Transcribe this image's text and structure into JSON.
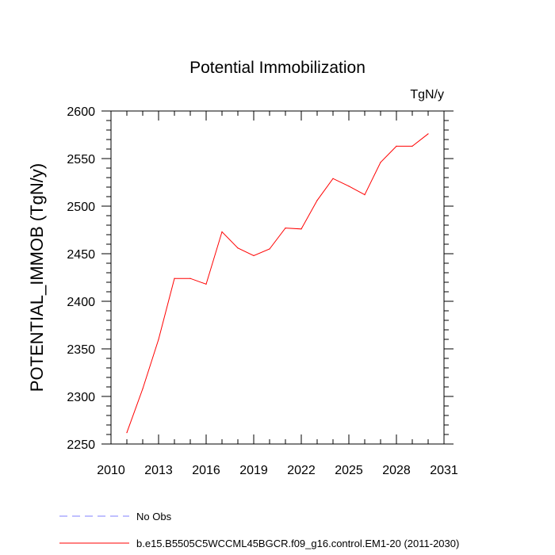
{
  "chart_data": {
    "type": "line",
    "title": "Potential Immobilization",
    "units_label": "TgN/y",
    "xlabel": "",
    "ylabel": "POTENTIAL_IMMOB  (TgN/y)",
    "xlim": [
      2010,
      2031
    ],
    "ylim": [
      2250,
      2600
    ],
    "x_ticks": [
      2010,
      2013,
      2016,
      2019,
      2022,
      2025,
      2028,
      2031
    ],
    "y_ticks": [
      2250,
      2300,
      2350,
      2400,
      2450,
      2500,
      2550,
      2600
    ],
    "grid": false,
    "legend_position": "bottom-left",
    "series": [
      {
        "name": "b.e15.B5505C5WCCML45BGCR.f09_g16.control.EM1-20 (2011-2030)",
        "color": "#ff0000",
        "x": [
          2011,
          2012,
          2013,
          2014,
          2015,
          2016,
          2017,
          2018,
          2019,
          2020,
          2021,
          2022,
          2023,
          2024,
          2025,
          2026,
          2027,
          2028,
          2029,
          2030
        ],
        "values": [
          2262,
          2308,
          2360,
          2424,
          2424,
          2418,
          2473,
          2456,
          2448,
          2455,
          2477,
          2476,
          2506,
          2529,
          2521,
          2512,
          2546,
          2563,
          2563,
          2576
        ]
      }
    ],
    "legend": [
      {
        "label": "No Obs",
        "color": "#8080ff",
        "style": "dashed"
      },
      {
        "label": "b.e15.B5505C5WCCML45BGCR.f09_g16.control.EM1-20 (2011-2030)",
        "color": "#ff0000",
        "style": "solid"
      }
    ]
  }
}
